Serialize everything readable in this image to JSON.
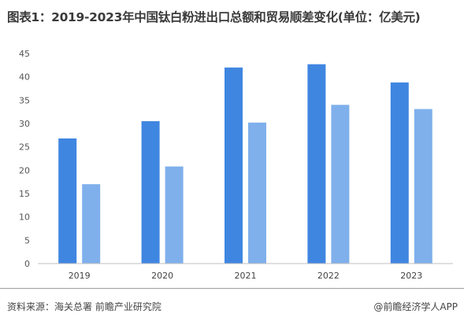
{
  "title": "图表1：2019-2023年中国钛白粉进出口总额和贸易顺差变化(单位：亿美元)",
  "footer": {
    "source": "资料来源：海关总署 前瞻产业研究院",
    "brand": "@前瞻经济学人APP"
  },
  "colors": {
    "series_dark": "#3f86e1",
    "series_light": "#7fb0ec",
    "axis": "#bfbfbf"
  },
  "chart_data": {
    "type": "bar",
    "title": "图表1：2019-2023年中国钛白粉进出口总额和贸易顺差变化(单位：亿美元)",
    "categories": [
      "2019",
      "2020",
      "2021",
      "2022",
      "2023"
    ],
    "series": [
      {
        "values": [
          26.8,
          30.5,
          42.0,
          42.7,
          38.8
        ]
      },
      {
        "values": [
          17.0,
          20.8,
          30.2,
          34.0,
          33.1
        ]
      }
    ],
    "ylim": [
      0,
      45
    ],
    "yticks": [
      0,
      5,
      10,
      15,
      20,
      25,
      30,
      35,
      40,
      45
    ],
    "grid": false,
    "legend": "none"
  }
}
